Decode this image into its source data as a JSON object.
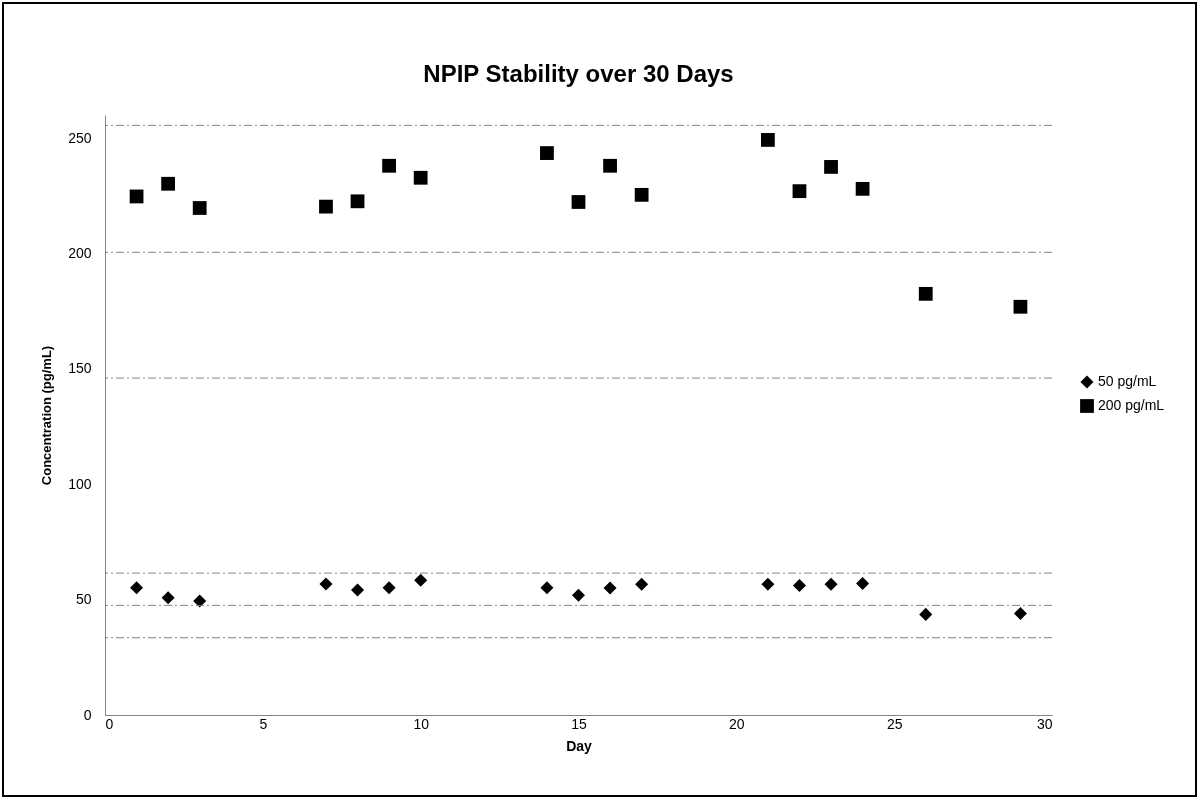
{
  "chart_data": {
    "type": "scatter",
    "title": "NPIP Stability over 30 Days",
    "xlabel": "Day",
    "ylabel": "Concentration (pg/mL)",
    "xlim": [
      0,
      30
    ],
    "xticks": [
      0,
      5,
      10,
      15,
      20,
      25,
      30
    ],
    "ylim": [
      0,
      260
    ],
    "yticks": [
      0,
      50,
      100,
      150,
      200,
      250
    ],
    "grid": false,
    "legend": "right",
    "series": [
      {
        "name": "50 pg/mL",
        "color": "#000000",
        "marker": "diamond",
        "x": [
          1,
          2,
          3,
          7,
          8,
          9,
          10,
          14,
          15,
          16,
          17,
          21,
          22,
          23,
          24,
          26,
          29
        ],
        "values": [
          55.1,
          50.8,
          49.4,
          56.8,
          54.2,
          55.1,
          58.4,
          55.1,
          51.9,
          55,
          56.7,
          56.7,
          56.1,
          56.7,
          57,
          43.6,
          44
        ]
      },
      {
        "name": "200 pg/mL",
        "color": "#000000",
        "marker": "square",
        "x": [
          1,
          2,
          3,
          7,
          8,
          9,
          10,
          14,
          15,
          16,
          17,
          21,
          22,
          23,
          24,
          26,
          29
        ],
        "values": [
          224.7,
          230.2,
          219.7,
          220.3,
          222.6,
          238,
          232.8,
          243.5,
          222.3,
          238,
          225.4,
          249.2,
          227,
          237.5,
          228,
          182.5,
          176.9
        ]
      }
    ],
    "ref_lines": [
      {
        "axis": "y",
        "value": 33.5,
        "color": "#808080",
        "line_style": "dashed"
      },
      {
        "axis": "y",
        "value": 47.5,
        "color": "#808080",
        "line_style": "dashed"
      },
      {
        "axis": "y",
        "value": 61.5,
        "color": "#808080",
        "line_style": "dashed"
      },
      {
        "axis": "y",
        "value": 146,
        "color": "#808080",
        "line_style": "dashed"
      },
      {
        "axis": "y",
        "value": 200.5,
        "color": "#808080",
        "line_style": "dashed"
      },
      {
        "axis": "y",
        "value": 255.5,
        "color": "#808080",
        "line_style": "dashed"
      }
    ]
  }
}
